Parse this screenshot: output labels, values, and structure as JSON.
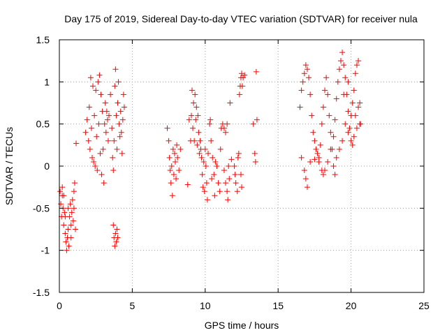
{
  "chart_data": {
    "type": "scatter",
    "title": "Day 175 of 2019, Sidereal Day-to-day VTEC variation (SDTVAR) for receiver nula",
    "xlabel": "GPS time / hours",
    "ylabel": "SDTVAR / TECUs",
    "xlim": [
      0,
      25
    ],
    "ylim": [
      -1.5,
      1.5
    ],
    "xticks": [
      0,
      5,
      10,
      15,
      20,
      25
    ],
    "yticks": [
      -1.5,
      -1,
      -0.5,
      0,
      0.5,
      1,
      1.5
    ],
    "xtick_labels": [
      "0",
      "5",
      "10",
      "15",
      "20",
      "25"
    ],
    "ytick_labels": [
      "-1.5",
      "-1",
      "-0.5",
      "0",
      "0.5",
      "1",
      "1.5"
    ],
    "grid": true,
    "marker": "+",
    "color": "#ff0000",
    "series": [
      {
        "name": "SDTVAR",
        "points": [
          [
            0.05,
            -0.3
          ],
          [
            0.1,
            -0.45
          ],
          [
            0.15,
            -0.6
          ],
          [
            0.2,
            -0.35
          ],
          [
            0.25,
            -0.5
          ],
          [
            0.3,
            -0.7
          ],
          [
            0.35,
            -0.55
          ],
          [
            0.4,
            -0.8
          ],
          [
            0.45,
            -0.9
          ],
          [
            0.5,
            -1.0
          ],
          [
            0.55,
            -0.85
          ],
          [
            0.6,
            -0.75
          ],
          [
            0.65,
            -0.95
          ],
          [
            0.7,
            -0.6
          ],
          [
            0.75,
            -0.45
          ],
          [
            0.8,
            -0.7
          ],
          [
            0.85,
            -0.55
          ],
          [
            0.9,
            -0.4
          ],
          [
            0.95,
            -0.65
          ],
          [
            1.0,
            -0.3
          ],
          [
            1.05,
            -0.2
          ],
          [
            1.1,
            -0.75
          ],
          [
            0.2,
            -0.25
          ],
          [
            0.3,
            -0.35
          ],
          [
            0.4,
            -0.6
          ],
          [
            0.6,
            -0.5
          ],
          [
            0.8,
            -0.85
          ],
          [
            1.0,
            -0.5
          ],
          [
            1.15,
            0.27
          ],
          [
            1.8,
            0.4
          ],
          [
            1.9,
            0.55
          ],
          [
            2.0,
            0.3
          ],
          [
            2.05,
            0.7
          ],
          [
            2.1,
            0.2
          ],
          [
            2.15,
            1.05
          ],
          [
            2.2,
            0.45
          ],
          [
            2.25,
            0.1
          ],
          [
            2.3,
            0.95
          ],
          [
            2.35,
            0.05
          ],
          [
            2.4,
            0.6
          ],
          [
            2.45,
            0.0
          ],
          [
            2.5,
            0.9
          ],
          [
            2.55,
            0.35
          ],
          [
            2.6,
            -0.05
          ],
          [
            2.65,
            1.0
          ],
          [
            2.7,
            0.5
          ],
          [
            2.75,
            1.08
          ],
          [
            2.8,
            0.15
          ],
          [
            2.85,
            0.85
          ],
          [
            2.9,
            -0.1
          ],
          [
            2.95,
            0.65
          ],
          [
            3.0,
            0.2
          ],
          [
            3.05,
            -0.2
          ],
          [
            3.1,
            0.5
          ],
          [
            3.15,
            0.75
          ],
          [
            3.2,
            0.4
          ],
          [
            3.25,
            0.65
          ],
          [
            3.3,
            0.55
          ],
          [
            3.35,
            0.3
          ],
          [
            3.4,
            0.6
          ],
          [
            3.5,
            0.85
          ],
          [
            3.6,
            0.45
          ],
          [
            3.65,
            0.1
          ],
          [
            3.7,
            -0.05
          ],
          [
            3.75,
            0.3
          ],
          [
            3.8,
            0.95
          ],
          [
            3.85,
            1.15
          ],
          [
            3.9,
            0.6
          ],
          [
            3.95,
            0.2
          ],
          [
            4.0,
            0.75
          ],
          [
            4.05,
            1.0
          ],
          [
            4.1,
            0.5
          ],
          [
            4.15,
            0.35
          ],
          [
            4.2,
            0.65
          ],
          [
            4.25,
            0.4
          ],
          [
            4.3,
            0.15
          ],
          [
            4.35,
            0.55
          ],
          [
            4.4,
            0.85
          ],
          [
            4.45,
            0.7
          ],
          [
            3.7,
            -0.7
          ],
          [
            3.75,
            -0.85
          ],
          [
            3.8,
            -0.95
          ],
          [
            3.85,
            -0.8
          ],
          [
            3.9,
            -0.9
          ],
          [
            3.95,
            -0.75
          ],
          [
            4.0,
            -0.85
          ],
          [
            7.4,
            0.45
          ],
          [
            7.5,
            0.3
          ],
          [
            7.55,
            0.1
          ],
          [
            7.6,
            -0.05
          ],
          [
            7.65,
            -0.2
          ],
          [
            7.7,
            0.0
          ],
          [
            7.75,
            -0.35
          ],
          [
            7.8,
            0.2
          ],
          [
            7.85,
            -0.1
          ],
          [
            7.9,
            0.15
          ],
          [
            7.95,
            0.05
          ],
          [
            8.0,
            -0.15
          ],
          [
            8.05,
            0.25
          ],
          [
            8.1,
            0.1
          ],
          [
            8.2,
            -0.05
          ],
          [
            8.3,
            0.2
          ],
          [
            8.8,
            -0.22
          ],
          [
            8.9,
            0.55
          ],
          [
            9.0,
            0.3
          ],
          [
            9.05,
            0.6
          ],
          [
            9.1,
            0.9
          ],
          [
            9.15,
            0.45
          ],
          [
            9.2,
            0.75
          ],
          [
            9.25,
            0.3
          ],
          [
            9.3,
            0.85
          ],
          [
            9.35,
            0.55
          ],
          [
            9.4,
            0.7
          ],
          [
            9.45,
            0.25
          ],
          [
            9.5,
            0.6
          ],
          [
            9.55,
            0.4
          ],
          [
            9.6,
            0.15
          ],
          [
            9.65,
            0.3
          ],
          [
            9.7,
            0.2
          ],
          [
            9.75,
            0.1
          ],
          [
            9.8,
            -0.1
          ],
          [
            9.85,
            -0.25
          ],
          [
            9.9,
            0.05
          ],
          [
            9.95,
            -0.3
          ],
          [
            10.0,
            0.2
          ],
          [
            10.05,
            0.0
          ],
          [
            10.1,
            -0.2
          ],
          [
            10.15,
            -0.4
          ],
          [
            10.2,
            0.15
          ],
          [
            10.3,
            0.5
          ],
          [
            10.35,
            0.55
          ],
          [
            10.4,
            0.3
          ],
          [
            10.45,
            -0.15
          ],
          [
            10.5,
            0.1
          ],
          [
            10.6,
            -0.1
          ],
          [
            10.65,
            -0.35
          ],
          [
            10.7,
            0.05
          ],
          [
            10.8,
            0.0
          ],
          [
            10.9,
            -0.2
          ],
          [
            11.0,
            -0.3
          ],
          [
            11.05,
            0.2
          ],
          [
            11.1,
            0.45
          ],
          [
            11.2,
            0.5
          ],
          [
            11.3,
            0.45
          ],
          [
            11.4,
            0.4
          ],
          [
            11.5,
            0.5
          ],
          [
            11.3,
            -0.05
          ],
          [
            11.4,
            -0.2
          ],
          [
            11.5,
            -0.3
          ],
          [
            11.55,
            -0.4
          ],
          [
            11.6,
            0.0
          ],
          [
            11.65,
            -0.15
          ],
          [
            11.7,
            0.75
          ],
          [
            11.8,
            0.08
          ],
          [
            12.0,
            0.0
          ],
          [
            12.05,
            -0.1
          ],
          [
            12.1,
            -0.2
          ],
          [
            12.2,
            -0.3
          ],
          [
            12.25,
            0.1
          ],
          [
            12.3,
            0.15
          ],
          [
            12.35,
            0.85
          ],
          [
            12.4,
            0.95
          ],
          [
            12.45,
            1.05
          ],
          [
            12.5,
            1.1
          ],
          [
            12.55,
            0.95
          ],
          [
            12.6,
            1.05
          ],
          [
            12.7,
            1.08
          ],
          [
            12.45,
            -0.1
          ],
          [
            12.5,
            -0.25
          ],
          [
            13.3,
            0.5
          ],
          [
            13.4,
            0.15
          ],
          [
            13.45,
            0.05
          ],
          [
            13.5,
            1.12
          ],
          [
            13.55,
            0.55
          ],
          [
            16.5,
            0.7
          ],
          [
            16.6,
            0.9
          ],
          [
            16.7,
            1.0
          ],
          [
            16.8,
            1.1
          ],
          [
            16.9,
            1.2
          ],
          [
            17.0,
            1.15
          ],
          [
            17.1,
            1.05
          ],
          [
            17.2,
            0.85
          ],
          [
            17.3,
            0.6
          ],
          [
            17.4,
            0.4
          ],
          [
            17.5,
            0.3
          ],
          [
            17.6,
            0.2
          ],
          [
            17.7,
            0.15
          ],
          [
            17.8,
            0.05
          ],
          [
            17.9,
            0.25
          ],
          [
            18.0,
            0.5
          ],
          [
            18.1,
            0.7
          ],
          [
            18.2,
            0.9
          ],
          [
            18.3,
            1.05
          ],
          [
            18.4,
            0.85
          ],
          [
            18.5,
            0.6
          ],
          [
            18.6,
            0.4
          ],
          [
            18.7,
            0.2
          ],
          [
            18.8,
            0.35
          ],
          [
            18.9,
            0.55
          ],
          [
            19.0,
            0.8
          ],
          [
            19.1,
            1.0
          ],
          [
            19.2,
            1.15
          ],
          [
            19.3,
            1.25
          ],
          [
            19.4,
            1.35
          ],
          [
            19.5,
            1.2
          ],
          [
            19.6,
            1.05
          ],
          [
            19.7,
            0.85
          ],
          [
            19.8,
            0.65
          ],
          [
            19.9,
            0.45
          ],
          [
            20.0,
            0.6
          ],
          [
            20.1,
            0.75
          ],
          [
            20.2,
            0.9
          ],
          [
            20.3,
            1.1
          ],
          [
            20.4,
            1.2
          ],
          [
            20.5,
            1.25
          ],
          [
            20.6,
            0.75
          ],
          [
            20.65,
            0.5
          ],
          [
            16.6,
            0.1
          ],
          [
            16.8,
            -0.05
          ],
          [
            16.9,
            -0.15
          ],
          [
            17.0,
            -0.25
          ],
          [
            17.2,
            0.05
          ],
          [
            17.5,
            0.08
          ],
          [
            17.8,
            0.1
          ],
          [
            18.0,
            -0.05
          ],
          [
            18.1,
            -0.1
          ],
          [
            18.2,
            -0.05
          ],
          [
            18.4,
            0.05
          ],
          [
            18.6,
            0.2
          ],
          [
            18.8,
            0.0
          ],
          [
            19.0,
            0.1
          ],
          [
            19.2,
            0.2
          ],
          [
            19.4,
            0.3
          ],
          [
            19.6,
            0.5
          ],
          [
            19.8,
            0.4
          ],
          [
            20.0,
            0.3
          ],
          [
            20.2,
            0.35
          ],
          [
            20.4,
            0.45
          ],
          [
            20.6,
            0.5
          ],
          [
            18.9,
            -0.1
          ],
          [
            19.5,
            0.85
          ],
          [
            19.8,
            1.0
          ],
          [
            20.1,
            0.25
          ],
          [
            20.3,
            0.6
          ],
          [
            20.5,
            0.7
          ]
        ]
      }
    ]
  }
}
